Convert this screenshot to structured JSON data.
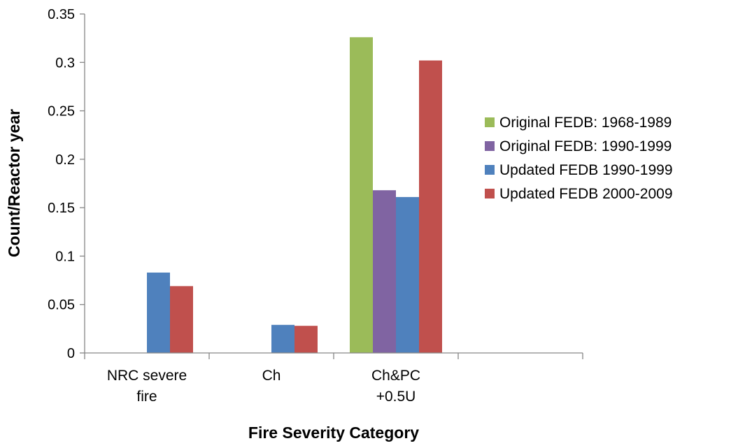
{
  "chart_data": {
    "type": "bar",
    "title": "",
    "xlabel": "Fire Severity Category",
    "ylabel": "Count/Reactor year",
    "ylim": [
      0,
      0.35
    ],
    "yticks": [
      "0",
      "0.05",
      "0.1",
      "0.15",
      "0.2",
      "0.25",
      "0.3",
      "0.35"
    ],
    "categories": [
      {
        "lines": [
          "NRC severe",
          "fire"
        ]
      },
      {
        "lines": [
          "Ch"
        ]
      },
      {
        "lines": [
          "Ch&PC",
          "+0.5U"
        ]
      },
      {
        "lines": []
      }
    ],
    "series": [
      {
        "name": "Original FEDB: 1968-1989",
        "color": "#9BBB59",
        "values": [
          null,
          null,
          0.326,
          null
        ]
      },
      {
        "name": "Original FEDB: 1990-1999",
        "color": "#8064A2",
        "values": [
          null,
          null,
          0.168,
          null
        ]
      },
      {
        "name": "Updated FEDB 1990-1999",
        "color": "#4F81BD",
        "values": [
          0.083,
          0.029,
          0.161,
          null
        ]
      },
      {
        "name": "Updated FEDB 2000-2009",
        "color": "#C0504D",
        "values": [
          0.069,
          0.028,
          0.302,
          null
        ]
      }
    ],
    "legend": "right",
    "grid": false
  }
}
